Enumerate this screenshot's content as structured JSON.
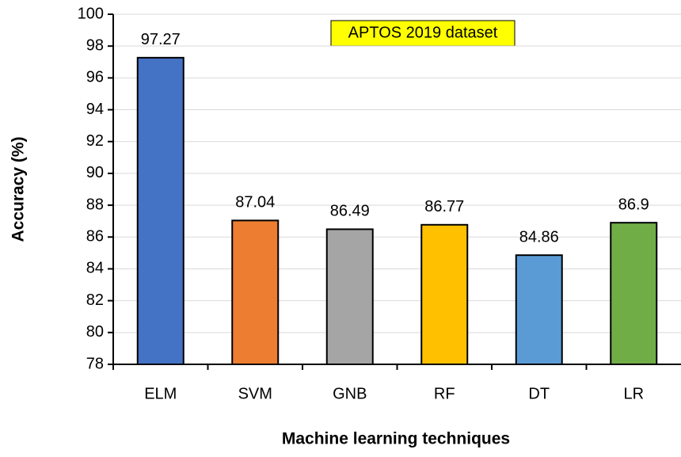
{
  "chart_data": {
    "type": "bar",
    "categories": [
      "ELM",
      "SVM",
      "GNB",
      "RF",
      "DT",
      "LR"
    ],
    "values": [
      97.27,
      87.04,
      86.49,
      86.77,
      84.86,
      86.9
    ],
    "colors": [
      "#4472c4",
      "#ed7d31",
      "#a5a5a5",
      "#ffc000",
      "#5b9bd5",
      "#70ad47"
    ],
    "xlabel": "Machine learning techniques",
    "ylabel": "Accuracy (%)",
    "annotation": "APTOS 2019 dataset",
    "ylim": [
      78,
      100
    ],
    "yticks": [
      78,
      80,
      82,
      84,
      86,
      88,
      90,
      92,
      94,
      96,
      98,
      100
    ],
    "grid": true
  }
}
